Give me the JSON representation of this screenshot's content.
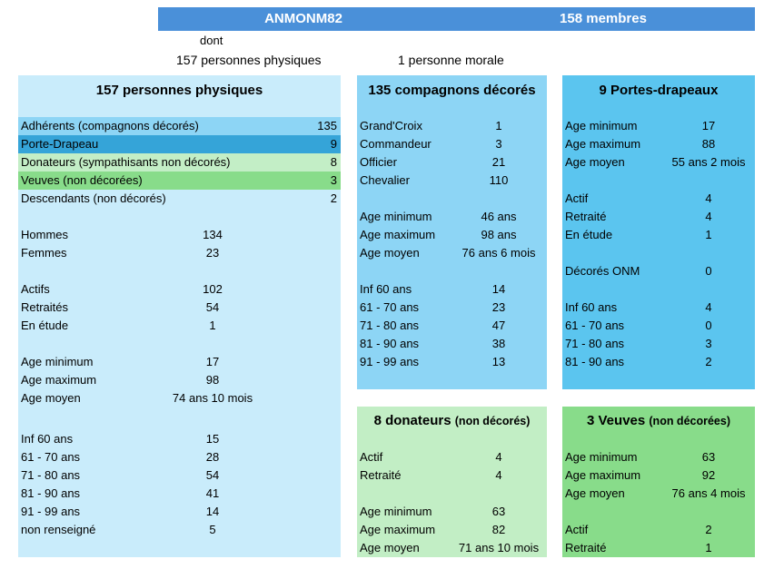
{
  "header": {
    "title": "ANMONM82",
    "members": "158 membres"
  },
  "sub": {
    "dont": "dont",
    "physical": "157 personnes physiques",
    "moral": "1 personne morale"
  },
  "colors": {
    "header": "#4a90d9",
    "panel_light": "#c9ecfb",
    "panel_mid": "#8dd5f5",
    "panel_strong": "#5bc5ef",
    "green_light": "#c2eec5",
    "green_strong": "#88dc8a",
    "row_adherents": "#8dd5f5",
    "row_porte": "#35a4d8",
    "row_donateurs": "#c3eec6",
    "row_veuves": "#88dc8a"
  },
  "p1": {
    "title": "157 personnes physiques",
    "cats": [
      {
        "label": "Adhérents (compagnons décorés)",
        "value": "135"
      },
      {
        "label": "Porte-Drapeau",
        "value": "9"
      },
      {
        "label": "Donateurs (sympathisants non décorés)",
        "value": "8"
      },
      {
        "label": "Veuves (non décorées)",
        "value": "3"
      },
      {
        "label": "Descendants (non décorés)",
        "value": "2"
      }
    ],
    "sex": [
      {
        "label": "Hommes",
        "value": "134"
      },
      {
        "label": "Femmes",
        "value": "23"
      }
    ],
    "status": [
      {
        "label": "Actifs",
        "value": "102"
      },
      {
        "label": "Retraités",
        "value": "54"
      },
      {
        "label": "En étude",
        "value": "1"
      }
    ],
    "age": [
      {
        "label": "Age minimum",
        "value": "17"
      },
      {
        "label": "Age maximum",
        "value": "98"
      },
      {
        "label": "Age moyen",
        "value": "74 ans 10 mois"
      }
    ],
    "ranges": [
      {
        "label": "Inf 60 ans",
        "value": "15"
      },
      {
        "label": "61 - 70 ans",
        "value": "28"
      },
      {
        "label": "71 - 80 ans",
        "value": "54"
      },
      {
        "label": "81 - 90 ans",
        "value": "41"
      },
      {
        "label": "91 - 99 ans",
        "value": "14"
      },
      {
        "label": "non renseigné",
        "value": "5"
      }
    ]
  },
  "p2": {
    "title": "135 compagnons décorés",
    "grades": [
      {
        "label": "Grand'Croix",
        "value": "1"
      },
      {
        "label": "Commandeur",
        "value": "3"
      },
      {
        "label": "Officier",
        "value": "21"
      },
      {
        "label": "Chevalier",
        "value": "110"
      }
    ],
    "age": [
      {
        "label": "Age minimum",
        "value": "46 ans"
      },
      {
        "label": "Age maximum",
        "value": "98 ans"
      },
      {
        "label": "Age moyen",
        "value": "76 ans 6 mois"
      }
    ],
    "ranges": [
      {
        "label": "Inf 60 ans",
        "value": "14"
      },
      {
        "label": "61 - 70 ans",
        "value": "23"
      },
      {
        "label": "71 - 80 ans",
        "value": "47"
      },
      {
        "label": "81 - 90 ans",
        "value": "38"
      },
      {
        "label": "91 - 99 ans",
        "value": "13"
      }
    ]
  },
  "p3": {
    "title": "9 Portes-drapeaux",
    "age": [
      {
        "label": "Age minimum",
        "value": "17"
      },
      {
        "label": "Age maximum",
        "value": "88"
      },
      {
        "label": "Age moyen",
        "value": "55 ans 2 mois"
      }
    ],
    "status": [
      {
        "label": "Actif",
        "value": "4"
      },
      {
        "label": "Retraité",
        "value": "4"
      },
      {
        "label": "En étude",
        "value": "1"
      }
    ],
    "onm": {
      "label": "Décorés ONM",
      "value": "0"
    },
    "ranges": [
      {
        "label": "Inf 60 ans",
        "value": "4"
      },
      {
        "label": "61 - 70 ans",
        "value": "0"
      },
      {
        "label": "71 - 80 ans",
        "value": "3"
      },
      {
        "label": "81 - 90 ans",
        "value": "2"
      }
    ]
  },
  "p4": {
    "title_main": "8 donateurs",
    "title_sub": "(non décorés)",
    "status": [
      {
        "label": "Actif",
        "value": "4"
      },
      {
        "label": "Retraité",
        "value": "4"
      }
    ],
    "age": [
      {
        "label": "Age minimum",
        "value": "63"
      },
      {
        "label": "Age maximum",
        "value": "82"
      },
      {
        "label": "Age moyen",
        "value": "71 ans 10 mois"
      }
    ]
  },
  "p5": {
    "title_main": "3 Veuves",
    "title_sub": "(non décorées)",
    "age": [
      {
        "label": "Age minimum",
        "value": "63"
      },
      {
        "label": "Age maximum",
        "value": "92"
      },
      {
        "label": "Age moyen",
        "value": "76 ans 4 mois"
      }
    ],
    "status": [
      {
        "label": "Actif",
        "value": "2"
      },
      {
        "label": "Retraité",
        "value": "1"
      }
    ]
  }
}
